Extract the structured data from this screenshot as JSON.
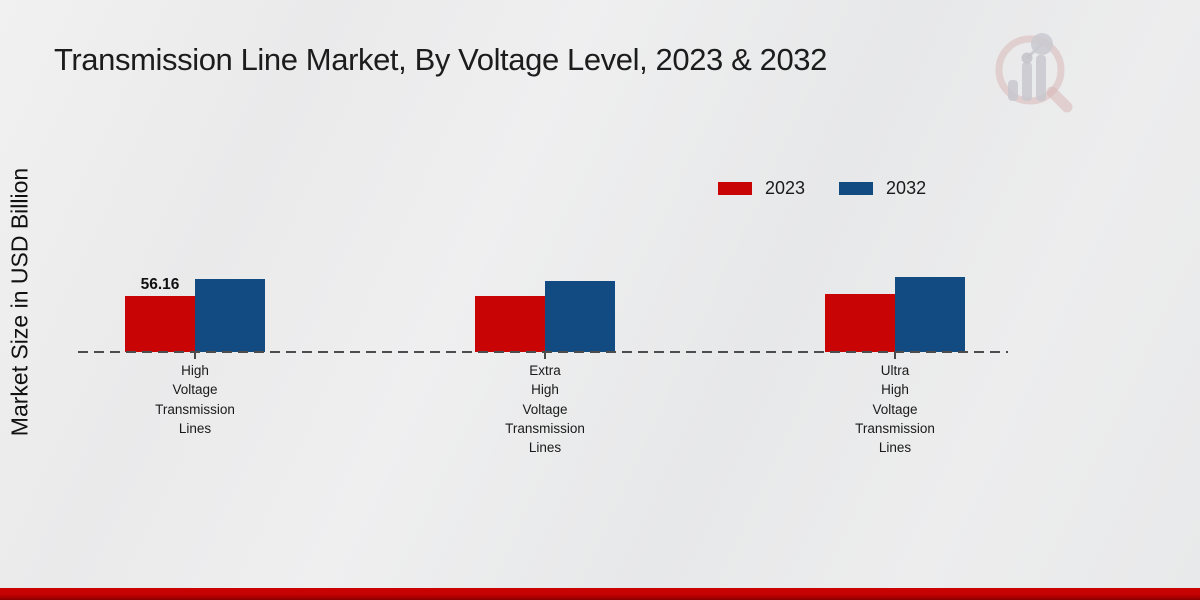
{
  "title": "Transmission Line Market, By Voltage Level, 2023 & 2032",
  "y_axis_label": "Market Size in USD Billion",
  "legend": {
    "items": [
      {
        "label": "2023",
        "color": "#c90404"
      },
      {
        "label": "2032",
        "color": "#114b82"
      }
    ]
  },
  "colors": {
    "series_2023": "#c90404",
    "series_2032": "#114b82",
    "baseline": "#4d4d4d",
    "footer_band": "#c30202",
    "logo_pink": "#d8b4b4",
    "logo_gray": "#c6c6cd"
  },
  "chart_data": {
    "type": "bar",
    "title": "Transmission Line Market, By Voltage Level, 2023 & 2032",
    "xlabel": "",
    "ylabel": "Market Size in USD Billion",
    "categories": [
      "High Voltage Transmission Lines",
      "Extra High Voltage Transmission Lines",
      "Ultra High Voltage Transmission Lines"
    ],
    "series": [
      {
        "name": "2023",
        "color": "#c90404",
        "values": [
          56.16,
          56.0,
          58.5
        ]
      },
      {
        "name": "2032",
        "color": "#114b82",
        "values": [
          72.8,
          71.2,
          75.5
        ]
      }
    ],
    "data_labels": [
      {
        "series_index": 0,
        "category_index": 0,
        "text": "56.16"
      }
    ],
    "legend_position": "top-right",
    "grid": false,
    "axis_baseline_style": "dashed",
    "ylim": [
      0,
      80
    ]
  }
}
